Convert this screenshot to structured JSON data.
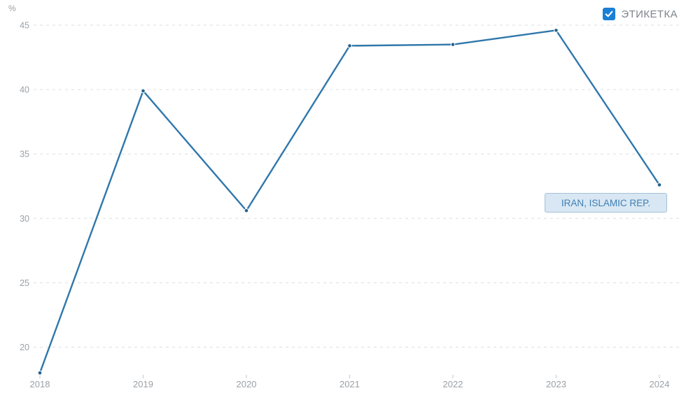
{
  "colors": {
    "line": "#2f77ab",
    "point": "#24618f",
    "checkbox": "#1b7fd6",
    "label_bg": "#d8e7f3",
    "label_border": "#a5c1d7",
    "label_text": "#3f7fb4",
    "grid": "#dcdfe3",
    "tick": "#c3c7cc",
    "axis_text": "#9aa0a6",
    "legend_text": "#7e848b"
  },
  "y_axis": {
    "unit": "%"
  },
  "legend": {
    "label": "ЭТИКЕТКА",
    "checked": true
  },
  "series_label_box": {
    "text": "IRAN, ISLAMIC REP."
  },
  "chart_data": {
    "type": "line",
    "title": "",
    "x": [
      2018,
      2019,
      2020,
      2021,
      2022,
      2023,
      2024
    ],
    "series": [
      {
        "name": "IRAN, ISLAMIC REP.",
        "values": [
          18.0,
          39.9,
          30.6,
          43.4,
          43.5,
          44.6,
          32.6
        ]
      }
    ],
    "xlabel": "",
    "ylabel": "%",
    "y_ticks": [
      45,
      40,
      35,
      30,
      25,
      20
    ],
    "ylim": [
      17.5,
      45.5
    ],
    "grid": "horizontal-dashed",
    "legend_position": "top-right"
  }
}
